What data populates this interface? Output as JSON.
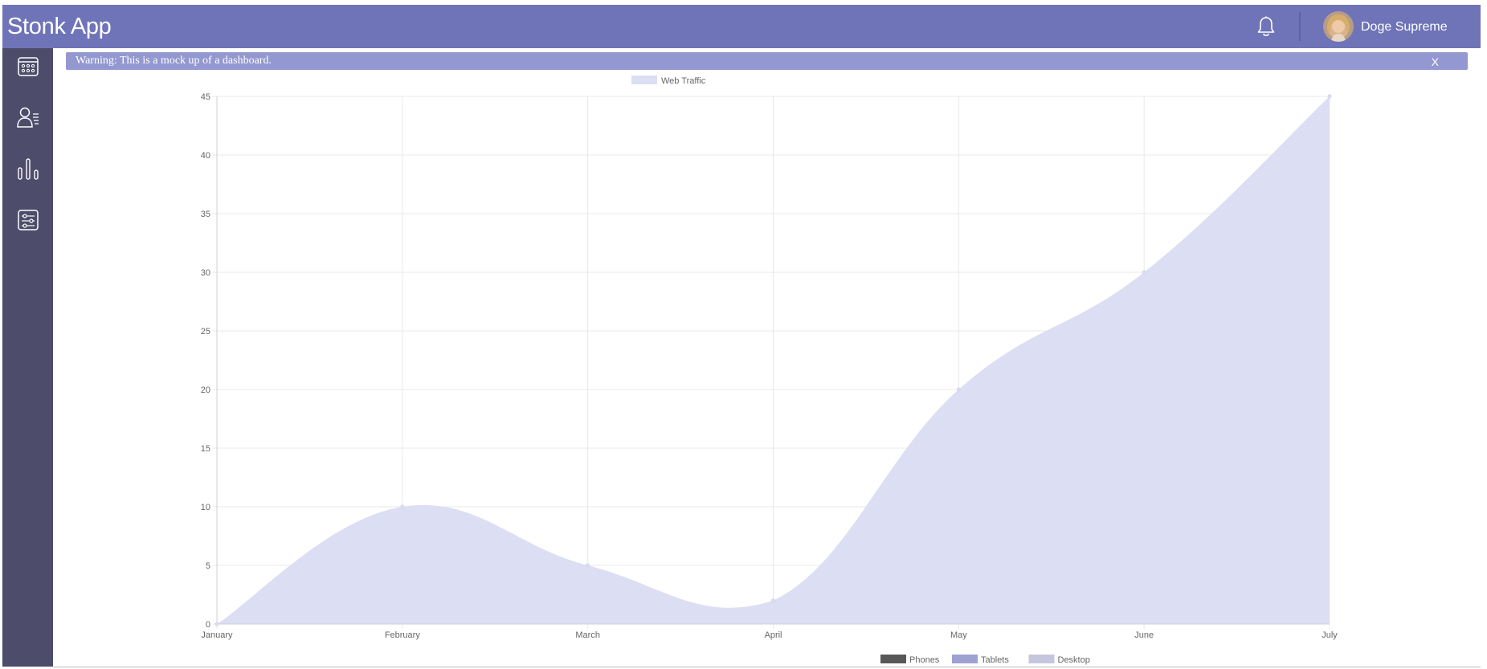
{
  "header": {
    "title": "Stonk App",
    "user": {
      "name": "Doge Supreme"
    },
    "icons": {
      "notifications": "bell-icon",
      "avatar": "user-avatar"
    }
  },
  "sidebar": {
    "items": [
      {
        "icon": "calendar-icon"
      },
      {
        "icon": "user-list-icon"
      },
      {
        "icon": "bar-chart-icon"
      },
      {
        "icon": "settings-sliders-icon"
      }
    ]
  },
  "alert": {
    "message": "Warning: This is a mock up of a dashboard.",
    "close_label": "X"
  },
  "colors": {
    "header": "#6f74b8",
    "sidebar": "#4d4c6a",
    "alert": "#9498d0",
    "area_fill": "#dcdef3"
  },
  "chart_data": {
    "type": "area",
    "categories": [
      "January",
      "February",
      "March",
      "April",
      "May",
      "June",
      "July"
    ],
    "series": [
      {
        "name": "Web Traffic",
        "values": [
          0,
          10,
          5,
          2,
          20,
          30,
          45
        ],
        "color": "#dcdef3"
      }
    ],
    "ylim": [
      0,
      45
    ],
    "yticks": [
      0,
      5,
      10,
      15,
      20,
      25,
      30,
      35,
      40,
      45
    ],
    "grid": true,
    "legend": "top-center",
    "secondary_legend": {
      "position": "bottom",
      "entries": [
        {
          "name": "Phones",
          "color": "#585858"
        },
        {
          "name": "Tablets",
          "color": "#9ea1d2"
        },
        {
          "name": "Desktop",
          "color": "#c5c6dd"
        }
      ]
    }
  }
}
